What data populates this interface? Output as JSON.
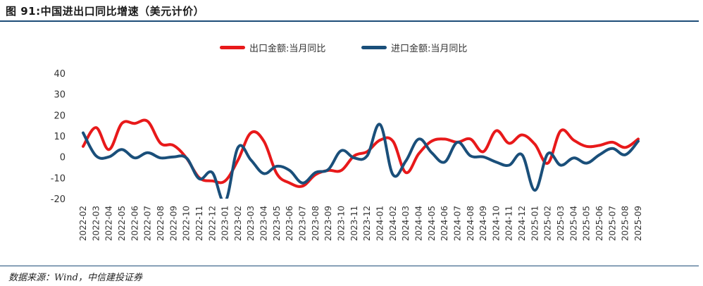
{
  "title": "图 91:中国进出口同比增速（美元计价）",
  "source": "数据来源：Wind，中信建投证券",
  "colors": {
    "export": "#e8191a",
    "import": "#1a4f7a",
    "rule": "#1f4e79"
  },
  "chart_data": {
    "type": "line",
    "title": "",
    "xlabel": "",
    "ylabel": "",
    "ylim": [
      -20,
      40
    ],
    "yticks": [
      "40",
      "30",
      "20",
      "10",
      "0",
      "-10",
      "-20"
    ],
    "grid": false,
    "legend": "top-center",
    "x": [
      "2022-02",
      "2022-03",
      "2022-04",
      "2022-05",
      "2022-06",
      "2022-07",
      "2022-08",
      "2022-09",
      "2022-10",
      "2022-11",
      "2022-12",
      "2023-01",
      "2023-02",
      "2023-03",
      "2023-04",
      "2023-05",
      "2023-06",
      "2023-07",
      "2023-08",
      "2023-09",
      "2023-10",
      "2023-11",
      "2023-12",
      "2024-01",
      "2024-02",
      "2024-03",
      "2024-04",
      "2024-05",
      "2024-06",
      "2024-07",
      "2024-08",
      "2024-09",
      "2024-10",
      "2024-11",
      "2024-12",
      "2025-01",
      "2025-02",
      "2025-03",
      "2025-04",
      "2025-05",
      "2025-06",
      "2025-07",
      "2025-08",
      "2025-09"
    ],
    "series": [
      {
        "name": "出口金额:当月同比",
        "values": [
          5.0,
          14.0,
          3.5,
          16.0,
          16.0,
          17.0,
          6.5,
          5.5,
          -0.5,
          -10.0,
          -11.5,
          -11.5,
          -1.5,
          11.5,
          7.5,
          -8.0,
          -12.5,
          -14.0,
          -8.5,
          -6.5,
          -6.5,
          0.5,
          2.5,
          8.0,
          7.5,
          -7.5,
          1.5,
          7.5,
          8.5,
          7.0,
          8.5,
          2.5,
          12.5,
          6.5,
          10.5,
          6.0,
          -3.0,
          12.5,
          8.0,
          5.0,
          5.5,
          7.0,
          4.5,
          8.5
        ],
        "color": "#e8191a"
      },
      {
        "name": "进口金额:当月同比",
        "values": [
          11.5,
          0.5,
          0.0,
          3.5,
          -0.5,
          2.0,
          -0.5,
          0.0,
          -0.5,
          -10.5,
          -7.5,
          -21.5,
          4.5,
          -1.5,
          -8.0,
          -4.5,
          -6.5,
          -12.5,
          -7.5,
          -6.0,
          3.0,
          -0.5,
          0.5,
          15.5,
          -8.5,
          -2.0,
          8.5,
          2.0,
          -2.5,
          7.0,
          0.5,
          0.0,
          -2.5,
          -4.0,
          1.0,
          -16.0,
          1.5,
          -4.0,
          -0.5,
          -3.0,
          1.0,
          4.0,
          1.0,
          7.5
        ],
        "color": "#1a4f7a"
      }
    ]
  }
}
